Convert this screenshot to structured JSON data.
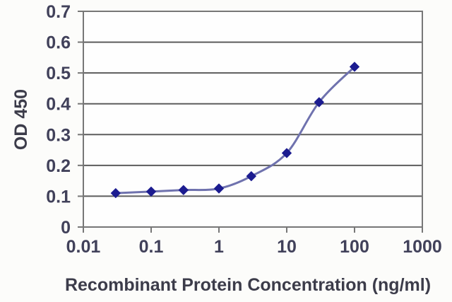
{
  "chart_data": {
    "type": "line",
    "x_scale": "log",
    "x": [
      0.03,
      0.1,
      0.3,
      1,
      3,
      10,
      30,
      100
    ],
    "y": [
      0.11,
      0.115,
      0.12,
      0.125,
      0.165,
      0.24,
      0.405,
      0.52
    ],
    "xlabel": "Recombinant Protein Concentration (ng/ml)",
    "ylabel": "OD 450",
    "xlim": [
      0.01,
      1000
    ],
    "ylim": [
      0,
      0.7
    ],
    "x_tick_labels": [
      "0.01",
      "0.1",
      "1",
      "10",
      "100",
      "1000"
    ],
    "x_tick_values": [
      0.01,
      0.1,
      1,
      10,
      100,
      1000
    ],
    "y_tick_labels": [
      "0",
      "0.1",
      "0.2",
      "0.3",
      "0.4",
      "0.5",
      "0.6",
      "0.7"
    ],
    "y_tick_values": [
      0,
      0.1,
      0.2,
      0.3,
      0.4,
      0.5,
      0.6,
      0.7
    ],
    "grid": "horizontal",
    "legend": "none",
    "marker": "diamond",
    "line_smooth": true,
    "colors": {
      "line": "#6f72ae",
      "marker": "#1c1c90",
      "grid": "#5d5d5d",
      "frame": "#777777",
      "tick_text": "#41415a",
      "title_text": "#3c3c4a",
      "plot_bg": "#fefefe",
      "page_bg": "#fcfcfa"
    }
  }
}
